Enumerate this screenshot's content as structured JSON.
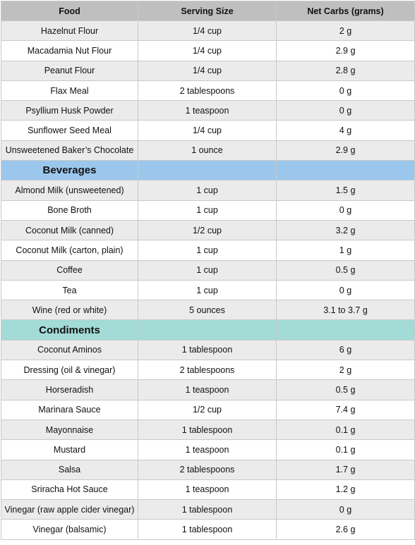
{
  "headers": [
    "Food",
    "Serving Size",
    "Net Carbs (grams)"
  ],
  "flours": [
    [
      "Hazelnut Flour",
      "1/4 cup",
      "2 g"
    ],
    [
      "Macadamia Nut Flour",
      "1/4 cup",
      "2.9 g"
    ],
    [
      "Peanut Flour",
      "1/4 cup",
      "2.8 g"
    ],
    [
      "Flax Meal",
      "2 tablespoons",
      "0 g"
    ],
    [
      "Psyllium Husk Powder",
      "1 teaspoon",
      "0 g"
    ],
    [
      "Sunflower Seed Meal",
      "1/4 cup",
      "4 g"
    ],
    [
      "Unsweetened Baker’s Chocolate",
      "1 ounce",
      "2.9 g"
    ]
  ],
  "beverages_label": "Beverages",
  "beverages": [
    [
      "Almond Milk (unsweetened)",
      "1 cup",
      "1.5 g"
    ],
    [
      "Bone Broth",
      "1 cup",
      "0 g"
    ],
    [
      "Coconut Milk (canned)",
      "1/2 cup",
      "3.2 g"
    ],
    [
      "Coconut Milk (carton, plain)",
      "1 cup",
      "1 g"
    ],
    [
      "Coffee",
      "1 cup",
      "0.5 g"
    ],
    [
      "Tea",
      "1 cup",
      "0 g"
    ],
    [
      "Wine (red or white)",
      "5 ounces",
      "3.1 to 3.7 g"
    ]
  ],
  "condiments_label": "Condiments",
  "condiments": [
    [
      "Coconut Aminos",
      "1 tablespoon",
      "6 g"
    ],
    [
      "Dressing (oil & vinegar)",
      "2 tablespoons",
      "2 g"
    ],
    [
      "Horseradish",
      "1 teaspoon",
      "0.5 g"
    ],
    [
      "Marinara Sauce",
      "1/2 cup",
      "7.4 g"
    ],
    [
      "Mayonnaise",
      "1 tablespoon",
      "0.1 g"
    ],
    [
      "Mustard",
      "1 teaspoon",
      "0.1 g"
    ],
    [
      "Salsa",
      "2 tablespoons",
      "1.7 g"
    ],
    [
      "Sriracha Hot Sauce",
      "1 teaspoon",
      "1.2 g"
    ],
    [
      "Vinegar (raw apple cider vinegar)",
      "1 tablespoon",
      "0 g"
    ],
    [
      "Vinegar (balsamic)",
      "1 tablespoon",
      "2.6 g"
    ]
  ]
}
